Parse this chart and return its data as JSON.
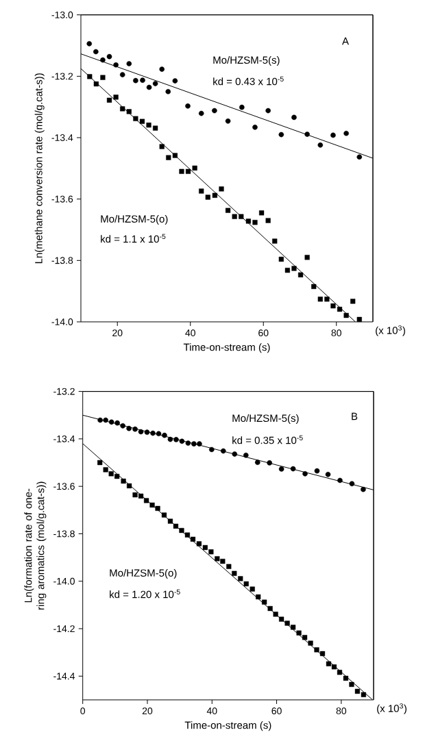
{
  "chart_data": [
    {
      "type": "scatter",
      "xlabel": "Time-on-stream (s)",
      "ylabel": "Ln(methane conversion rate (mol/g.cat-s))",
      "xlim": [
        10,
        90
      ],
      "ylim": [
        -14.0,
        -13.0
      ],
      "xticks": [
        20,
        40,
        60,
        80
      ],
      "yticks": [
        {
          "value": -13.0,
          "label": "-13.0"
        },
        {
          "value": -13.2,
          "label": "-13.2"
        },
        {
          "value": -13.4,
          "label": "-13.4"
        },
        {
          "value": -13.6,
          "label": "-13.6"
        },
        {
          "value": -13.8,
          "label": "-13.8"
        },
        {
          "value": -14.0,
          "label": "-14.0"
        }
      ],
      "annotations": [
        "A",
        "Mo/HZSM-5(s)",
        "kd = 0.43 x 10$^{-5}$",
        "Mo/HZSM-5(o)",
        "kd = 1.1 x 10$^{-5}$",
        "(x 10$^{3}$)"
      ],
      "series": [
        {
          "type": "scatter",
          "marker": "circle",
          "color": "#000000",
          "x": [
            12.3,
            14.1,
            16.0,
            17.8,
            19.6,
            21.4,
            23.2,
            25.0,
            26.9,
            28.7,
            30.4,
            32.2,
            33.9,
            35.8,
            39.3,
            43.0,
            46.6,
            50.3,
            54.1,
            57.7,
            61.3,
            64.9,
            68.4,
            72.0,
            75.6,
            79.1,
            82.7,
            86.3
          ],
          "values": [
            -13.094,
            -13.12,
            -13.147,
            -13.136,
            -13.163,
            -13.195,
            -13.159,
            -13.214,
            -13.213,
            -13.236,
            -13.224,
            -13.177,
            -13.25,
            -13.215,
            -13.297,
            -13.321,
            -13.312,
            -13.346,
            -13.301,
            -13.366,
            -13.312,
            -13.39,
            -13.334,
            -13.389,
            -13.424,
            -13.392,
            -13.386,
            -13.463
          ]
        },
        {
          "type": "scatter",
          "marker": "square",
          "color": "#000000",
          "x": [
            12.4,
            14.2,
            16.0,
            17.8,
            19.6,
            21.4,
            23.2,
            25.0,
            26.8,
            28.6,
            30.4,
            32.2,
            34.0,
            35.8,
            37.6,
            39.4,
            41.2,
            43.0,
            44.8,
            46.7,
            48.5,
            50.3,
            52.1,
            53.9,
            55.9,
            57.7,
            59.5,
            61.3,
            63.1,
            64.9,
            66.6,
            68.4,
            70.2,
            72.0,
            73.8,
            75.6,
            77.4,
            79.1,
            80.9,
            82.7,
            84.5,
            86.3
          ],
          "values": [
            -13.201,
            -13.225,
            -13.204,
            -13.278,
            -13.268,
            -13.306,
            -13.315,
            -13.338,
            -13.347,
            -13.359,
            -13.369,
            -13.429,
            -13.465,
            -13.458,
            -13.51,
            -13.51,
            -13.499,
            -13.574,
            -13.594,
            -13.588,
            -13.567,
            -13.637,
            -13.657,
            -13.657,
            -13.672,
            -13.676,
            -13.645,
            -13.67,
            -13.737,
            -13.796,
            -13.832,
            -13.826,
            -13.847,
            -13.79,
            -13.885,
            -13.926,
            -13.926,
            -13.948,
            -13.959,
            -13.979,
            -13.933,
            -13.992
          ]
        },
        {
          "type": "line",
          "marker": "none",
          "color": "#000000",
          "x": [
            10,
            90
          ],
          "values": [
            -13.127,
            -13.467
          ]
        },
        {
          "type": "line",
          "marker": "none",
          "color": "#000000",
          "x": [
            10,
            85.2
          ],
          "values": [
            -13.175,
            -14.0
          ]
        }
      ]
    },
    {
      "type": "scatter",
      "xlabel": "Time-on-stream (s)",
      "ylabel": "Ln(formation rate of one-ring aromatics (mol/g.cat-s))",
      "xlim": [
        0,
        90
      ],
      "ylim": [
        -14.5,
        -13.2
      ],
      "xticks": [
        0,
        20,
        40,
        60,
        80
      ],
      "yticks": [
        {
          "value": -13.2,
          "label": "-13.2"
        },
        {
          "value": -13.4,
          "label": "-13.4"
        },
        {
          "value": -13.6,
          "label": "-13.6"
        },
        {
          "value": -13.8,
          "label": "-13.8"
        },
        {
          "value": -14.0,
          "label": "-14.0"
        },
        {
          "value": -14.2,
          "label": "-14.2"
        },
        {
          "value": -14.4,
          "label": "-14.4"
        }
      ],
      "annotations": [
        "B",
        "Mo/HZSM-5(s)",
        "kd = 0.35 x 10$^{-5}$",
        "Mo/HZSM-5(o)",
        "kd = 1.20 x 10$^{-5}$",
        "(x 10$^{3}$)"
      ],
      "series": [
        {
          "type": "scatter",
          "marker": "circle",
          "color": "#000000",
          "x": [
            5.4,
            7.1,
            8.9,
            10.7,
            12.4,
            14.3,
            16.2,
            18.0,
            19.9,
            21.7,
            23.5,
            25.3,
            27.1,
            28.9,
            30.7,
            32.6,
            34.4,
            36.1,
            39.9,
            43.5,
            47.0,
            50.5,
            54.1,
            57.8,
            61.5,
            65.1,
            68.8,
            72.5,
            75.9,
            79.6,
            83.3,
            86.8
          ],
          "values": [
            -13.321,
            -13.321,
            -13.329,
            -13.333,
            -13.345,
            -13.356,
            -13.359,
            -13.37,
            -13.372,
            -13.376,
            -13.378,
            -13.385,
            -13.402,
            -13.403,
            -13.41,
            -13.418,
            -13.421,
            -13.421,
            -13.445,
            -13.451,
            -13.464,
            -13.469,
            -13.499,
            -13.501,
            -13.527,
            -13.526,
            -13.547,
            -13.535,
            -13.55,
            -13.575,
            -13.589,
            -13.613
          ]
        },
        {
          "type": "scatter",
          "marker": "square",
          "color": "#000000",
          "x": [
            5.3,
            7.1,
            8.8,
            10.6,
            12.6,
            14.4,
            16.2,
            18.0,
            19.7,
            21.5,
            23.2,
            25.2,
            27.1,
            28.8,
            30.6,
            32.4,
            34.1,
            36.0,
            37.9,
            39.7,
            41.6,
            43.3,
            45.2,
            46.9,
            48.8,
            50.6,
            52.5,
            54.3,
            56.2,
            58.0,
            59.7,
            61.5,
            63.3,
            65.1,
            66.9,
            68.7,
            70.5,
            72.4,
            74.2,
            76.1,
            77.8,
            79.5,
            81.4,
            83.2,
            85.0,
            86.9
          ],
          "values": [
            -13.5,
            -13.53,
            -13.547,
            -13.558,
            -13.578,
            -13.598,
            -13.636,
            -13.641,
            -13.66,
            -13.679,
            -13.693,
            -13.721,
            -13.747,
            -13.768,
            -13.786,
            -13.805,
            -13.823,
            -13.842,
            -13.858,
            -13.876,
            -13.905,
            -13.916,
            -13.938,
            -13.967,
            -13.989,
            -14.011,
            -14.033,
            -14.066,
            -14.088,
            -14.115,
            -14.139,
            -14.16,
            -14.177,
            -14.194,
            -14.218,
            -14.237,
            -14.261,
            -14.289,
            -14.305,
            -14.348,
            -14.361,
            -14.384,
            -14.409,
            -14.435,
            -14.464,
            -14.478
          ]
        },
        {
          "type": "line",
          "marker": "none",
          "color": "#000000",
          "x": [
            0,
            90
          ],
          "values": [
            -13.3,
            -13.615
          ]
        },
        {
          "type": "line",
          "marker": "none",
          "color": "#000000",
          "x": [
            0,
            89.7
          ],
          "values": [
            -13.42,
            -14.5
          ]
        }
      ]
    }
  ]
}
